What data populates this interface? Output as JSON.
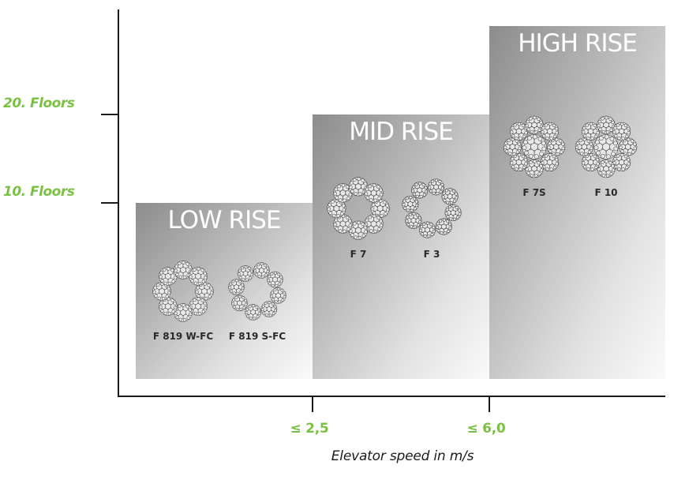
{
  "colors": {
    "accent_green": "#7ac143",
    "axis": "#1a1a1a",
    "block_dark": "#8c8c8c",
    "block_light": "#fafafa",
    "title_text": "#ffffff"
  },
  "y_axis": {
    "ticks": [
      "20. Floors",
      "10. Floors"
    ]
  },
  "x_axis": {
    "ticks": [
      "≤ 2,5",
      "≤ 6,0"
    ],
    "label": "Elevator speed in m/s"
  },
  "tiers": [
    {
      "title": "LOW RISE",
      "ropes": [
        {
          "label": "F 819 W-FC",
          "icon": "rope-cross-section-icon"
        },
        {
          "label": "F 819 S-FC",
          "icon": "rope-cross-section-icon"
        }
      ]
    },
    {
      "title": "MID RISE",
      "ropes": [
        {
          "label": "F 7",
          "icon": "rope-cross-section-icon"
        },
        {
          "label": "F 3",
          "icon": "rope-cross-section-icon"
        }
      ]
    },
    {
      "title": "HIGH RISE",
      "ropes": [
        {
          "label": "F 7S",
          "icon": "rope-cross-section-icon"
        },
        {
          "label": "F 10",
          "icon": "rope-cross-section-icon"
        }
      ]
    }
  ]
}
